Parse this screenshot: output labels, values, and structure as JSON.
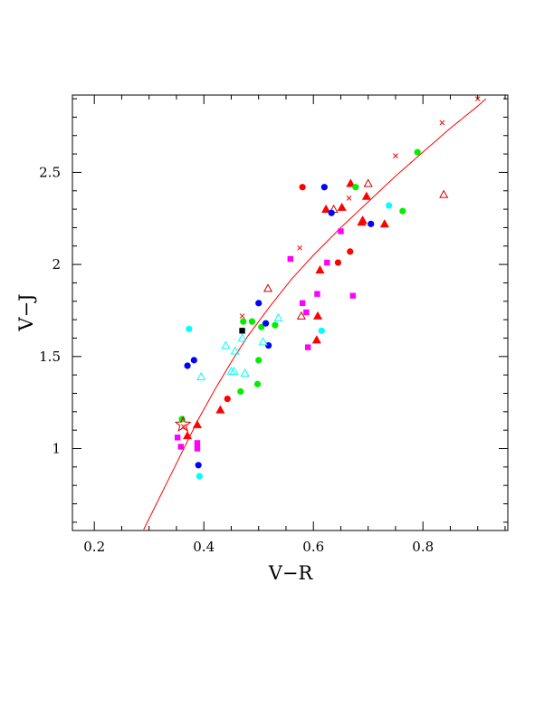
{
  "chart_data": {
    "type": "scatter",
    "xlabel": "V−R",
    "ylabel": "V−J",
    "xlim": [
      0.16,
      0.955
    ],
    "ylim": [
      0.555,
      2.92
    ],
    "x_ticks": [
      {
        "value": 0.2,
        "label": "0.2"
      },
      {
        "value": 0.4,
        "label": "0.4"
      },
      {
        "value": 0.6,
        "label": "0.6"
      },
      {
        "value": 0.8,
        "label": "0.8"
      }
    ],
    "y_ticks": [
      {
        "value": 1.0,
        "label": "1"
      },
      {
        "value": 1.5,
        "label": "1.5"
      },
      {
        "value": 2.0,
        "label": "2"
      },
      {
        "value": 2.5,
        "label": "2.5"
      }
    ],
    "x_minor_step": 0.05,
    "y_minor_step": 0.1,
    "grid": false,
    "legend": "none",
    "colors": {
      "red": "#ff0000",
      "green": "#00ee00",
      "blue": "#0000ff",
      "magenta": "#ff00ff",
      "cyan": "#00ffff",
      "black": "#000000",
      "darkred": "#cc0000"
    },
    "curve": {
      "color": "#ff0000",
      "points": [
        [
          0.29,
          0.56
        ],
        [
          0.31,
          0.68
        ],
        [
          0.33,
          0.8
        ],
        [
          0.35,
          0.92
        ],
        [
          0.37,
          1.04
        ],
        [
          0.39,
          1.16
        ],
        [
          0.42,
          1.32
        ],
        [
          0.45,
          1.47
        ],
        [
          0.48,
          1.61
        ],
        [
          0.52,
          1.77
        ],
        [
          0.56,
          1.92
        ],
        [
          0.6,
          2.05
        ],
        [
          0.65,
          2.2
        ],
        [
          0.7,
          2.34
        ],
        [
          0.75,
          2.48
        ],
        [
          0.8,
          2.61
        ],
        [
          0.85,
          2.74
        ],
        [
          0.9,
          2.86
        ],
        [
          0.915,
          2.9
        ]
      ],
      "markers": [
        [
          0.363,
          1.12
        ],
        [
          0.47,
          1.72
        ],
        [
          0.575,
          2.09
        ],
        [
          0.665,
          2.36
        ],
        [
          0.75,
          2.59
        ],
        [
          0.835,
          2.77
        ],
        [
          0.9,
          2.9
        ]
      ]
    },
    "series": [
      {
        "marker": "circle",
        "color": "red",
        "points": [
          [
            0.443,
            1.27
          ],
          [
            0.58,
            2.42
          ],
          [
            0.645,
            2.01
          ],
          [
            0.667,
            2.07
          ]
        ]
      },
      {
        "marker": "triangle",
        "color": "red",
        "points": [
          [
            0.37,
            1.07
          ],
          [
            0.388,
            1.13
          ],
          [
            0.43,
            1.21
          ],
          [
            0.606,
            1.59
          ],
          [
            0.608,
            1.72
          ],
          [
            0.612,
            1.97
          ],
          [
            0.623,
            2.3
          ],
          [
            0.652,
            2.31
          ],
          [
            0.668,
            2.44
          ],
          [
            0.688,
            2.23
          ],
          [
            0.69,
            2.24
          ],
          [
            0.697,
            2.37
          ],
          [
            0.73,
            2.22
          ]
        ]
      },
      {
        "marker": "triangle-open",
        "color": "darkred",
        "points": [
          [
            0.517,
            1.87
          ],
          [
            0.578,
            1.72
          ],
          [
            0.637,
            2.3
          ],
          [
            0.7,
            2.44
          ],
          [
            0.838,
            2.38
          ]
        ]
      },
      {
        "marker": "circle",
        "color": "green",
        "points": [
          [
            0.36,
            1.16
          ],
          [
            0.467,
            1.31
          ],
          [
            0.472,
            1.69
          ],
          [
            0.488,
            1.69
          ],
          [
            0.498,
            1.35
          ],
          [
            0.5,
            1.48
          ],
          [
            0.505,
            1.66
          ],
          [
            0.53,
            1.67
          ],
          [
            0.677,
            2.42
          ],
          [
            0.763,
            2.29
          ],
          [
            0.79,
            2.61
          ]
        ]
      },
      {
        "marker": "circle",
        "color": "blue",
        "points": [
          [
            0.37,
            1.45
          ],
          [
            0.382,
            1.48
          ],
          [
            0.39,
            0.91
          ],
          [
            0.5,
            1.79
          ],
          [
            0.513,
            1.68
          ],
          [
            0.518,
            1.56
          ],
          [
            0.62,
            2.42
          ],
          [
            0.633,
            2.28
          ],
          [
            0.705,
            2.22
          ]
        ]
      },
      {
        "marker": "square",
        "color": "magenta",
        "points": [
          [
            0.352,
            1.06
          ],
          [
            0.358,
            1.01
          ],
          [
            0.388,
            1.0
          ],
          [
            0.388,
            1.03
          ],
          [
            0.558,
            2.03
          ],
          [
            0.58,
            1.79
          ],
          [
            0.587,
            1.74
          ],
          [
            0.59,
            1.55
          ],
          [
            0.607,
            1.84
          ],
          [
            0.625,
            2.01
          ],
          [
            0.65,
            2.18
          ],
          [
            0.672,
            1.83
          ]
        ]
      },
      {
        "marker": "circle",
        "color": "cyan",
        "points": [
          [
            0.373,
            1.65
          ],
          [
            0.392,
            0.85
          ],
          [
            0.615,
            1.64
          ],
          [
            0.738,
            2.32
          ]
        ]
      },
      {
        "marker": "triangle-open",
        "color": "cyan",
        "points": [
          [
            0.395,
            1.39
          ],
          [
            0.44,
            1.56
          ],
          [
            0.45,
            1.42
          ],
          [
            0.455,
            1.42
          ],
          [
            0.457,
            1.53
          ],
          [
            0.47,
            1.6
          ],
          [
            0.475,
            1.41
          ],
          [
            0.508,
            1.58
          ],
          [
            0.536,
            1.71
          ]
        ]
      },
      {
        "marker": "square",
        "color": "black",
        "points": [
          [
            0.47,
            1.64
          ]
        ]
      },
      {
        "marker": "star-open",
        "color": "darkred",
        "points": [
          [
            0.362,
            1.13
          ]
        ]
      }
    ]
  }
}
